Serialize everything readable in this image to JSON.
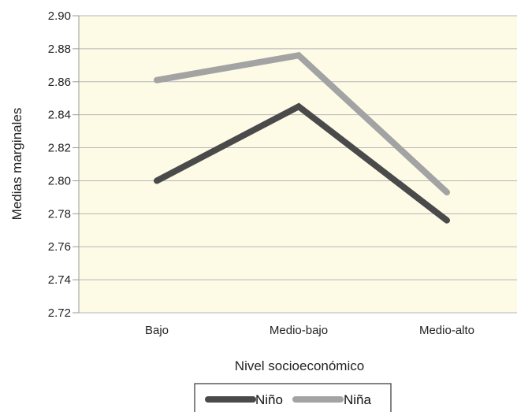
{
  "chart_data": {
    "type": "line",
    "xlabel": "Nivel socioeconómico",
    "ylabel": "Medias marginales",
    "categories": [
      "Bajo",
      "Medio-bajo",
      "Medio-alto"
    ],
    "ylim": [
      2.72,
      2.9
    ],
    "yticks": [
      "2.72",
      "2.74",
      "2.76",
      "2.78",
      "2.80",
      "2.82",
      "2.84",
      "2.86",
      "2.88",
      "2.90"
    ],
    "grid": true,
    "legend_position": "bottom",
    "series": [
      {
        "name": "Niño",
        "values": [
          2.8,
          2.845,
          2.776
        ],
        "color": "#4a4a4a"
      },
      {
        "name": "Niña",
        "values": [
          2.861,
          2.876,
          2.793
        ],
        "color": "#a3a3a3"
      }
    ],
    "plot_background": "#fdfbe6"
  }
}
